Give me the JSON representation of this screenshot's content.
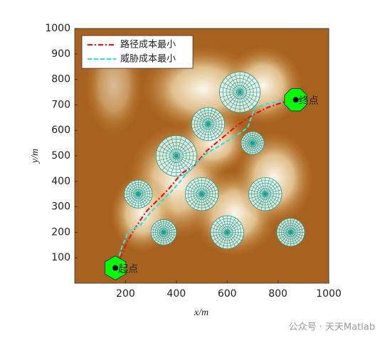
{
  "chart_data": {
    "type": "path-map",
    "xlabel": "x/m",
    "ylabel": "y/m",
    "xlim": [
      0,
      1000
    ],
    "xticks": [
      200,
      400,
      600,
      800,
      1000
    ],
    "ylim": [
      0,
      1000
    ],
    "yticks": [
      100,
      200,
      300,
      400,
      500,
      600,
      700,
      800,
      900,
      1000
    ],
    "legend": "upper left",
    "threats": {
      "color": "#1a9e8f",
      "x": [
        650,
        525,
        700,
        400,
        250,
        500,
        750,
        350,
        600,
        850
      ],
      "y": [
        750,
        625,
        550,
        500,
        350,
        350,
        350,
        200,
        200,
        200
      ],
      "r": [
        80,
        65,
        45,
        80,
        55,
        65,
        65,
        50,
        65,
        55
      ]
    },
    "points": [
      {
        "label": "起点",
        "x": 160,
        "y": 60,
        "color": "#00ff00"
      },
      {
        "label": "终点",
        "x": 870,
        "y": 720,
        "color": "#00ff00"
      }
    ],
    "series": [
      {
        "name": "路径成本最小",
        "color": "#e8141e",
        "dash": "dashdot",
        "x": [
          160,
          180,
          210,
          240,
          280,
          330,
          370,
          420,
          470,
          520,
          580,
          640,
          700,
          760,
          820,
          870
        ],
        "y": [
          60,
          100,
          170,
          220,
          280,
          330,
          370,
          430,
          460,
          520,
          570,
          620,
          660,
          690,
          710,
          720
        ]
      },
      {
        "name": "威胁成本最小",
        "color": "#33e0e0",
        "dash": "dash",
        "x": [
          160,
          170,
          185,
          210,
          260,
          300,
          340,
          390,
          440,
          480,
          520,
          570,
          620,
          680,
          710,
          780,
          870
        ],
        "y": [
          60,
          90,
          140,
          200,
          230,
          280,
          320,
          370,
          430,
          470,
          510,
          540,
          570,
          610,
          690,
          710,
          720
        ]
      }
    ],
    "watermark": "公众号 · 天天Matlab"
  }
}
